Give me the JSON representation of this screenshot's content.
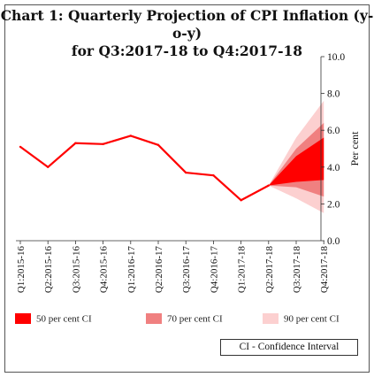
{
  "title": {
    "line1": "Chart 1:  Quarterly Projection of CPI Inflation (y-o-y)",
    "line2": "for Q3:2017-18 to Q4:2017-18"
  },
  "legend": {
    "items": [
      {
        "label": "50 per cent CI",
        "color": "#ff0000"
      },
      {
        "label": "70 per cent CI",
        "color": "#f08080"
      },
      {
        "label": "90 per cent CI",
        "color": "#fcd0d0"
      }
    ],
    "note": "CI - Confidence Interval"
  },
  "chart_data": {
    "type": "area",
    "categories": [
      "Q1:2015-16",
      "Q2:2015-16",
      "Q3:2015-16",
      "Q4:2015-16",
      "Q1:2016-17",
      "Q2:2016-17",
      "Q3:2016-17",
      "Q4:2016-17",
      "Q1:2017-18",
      "Q2:2017-18",
      "Q3:2017-18",
      "Q4:2017-18"
    ],
    "ylabel": "Per cent",
    "ylim": [
      0,
      10
    ],
    "yticks": [
      "0.0",
      "2.0",
      "4.0",
      "6.0",
      "8.0",
      "10.0"
    ],
    "ytick_values": [
      0,
      2,
      4,
      6,
      8,
      10
    ],
    "actual": {
      "x_index": [
        0,
        1,
        2,
        3,
        4,
        5,
        6,
        7,
        8,
        9
      ],
      "values": [
        5.1,
        4.0,
        5.3,
        5.25,
        5.7,
        5.2,
        3.7,
        3.55,
        2.2,
        3.0
      ]
    },
    "fan": {
      "x_index": [
        9,
        10,
        11
      ],
      "central": [
        3.0,
        4.2,
        4.6
      ],
      "ci90_upper": [
        3.0,
        5.6,
        7.6
      ],
      "ci90_lower": [
        3.0,
        2.3,
        1.5
      ],
      "ci70_upper": [
        3.0,
        5.0,
        6.4
      ],
      "ci70_lower": [
        3.0,
        2.9,
        2.4
      ],
      "ci50_upper": [
        3.0,
        4.6,
        5.6
      ],
      "ci50_lower": [
        3.0,
        3.2,
        3.3
      ]
    },
    "colors": {
      "actual": "#ff0000",
      "ci50": "#ff0000",
      "ci70": "#f08080",
      "ci90": "#fcd0d0"
    },
    "grid": false,
    "legend_position": "bottom"
  }
}
